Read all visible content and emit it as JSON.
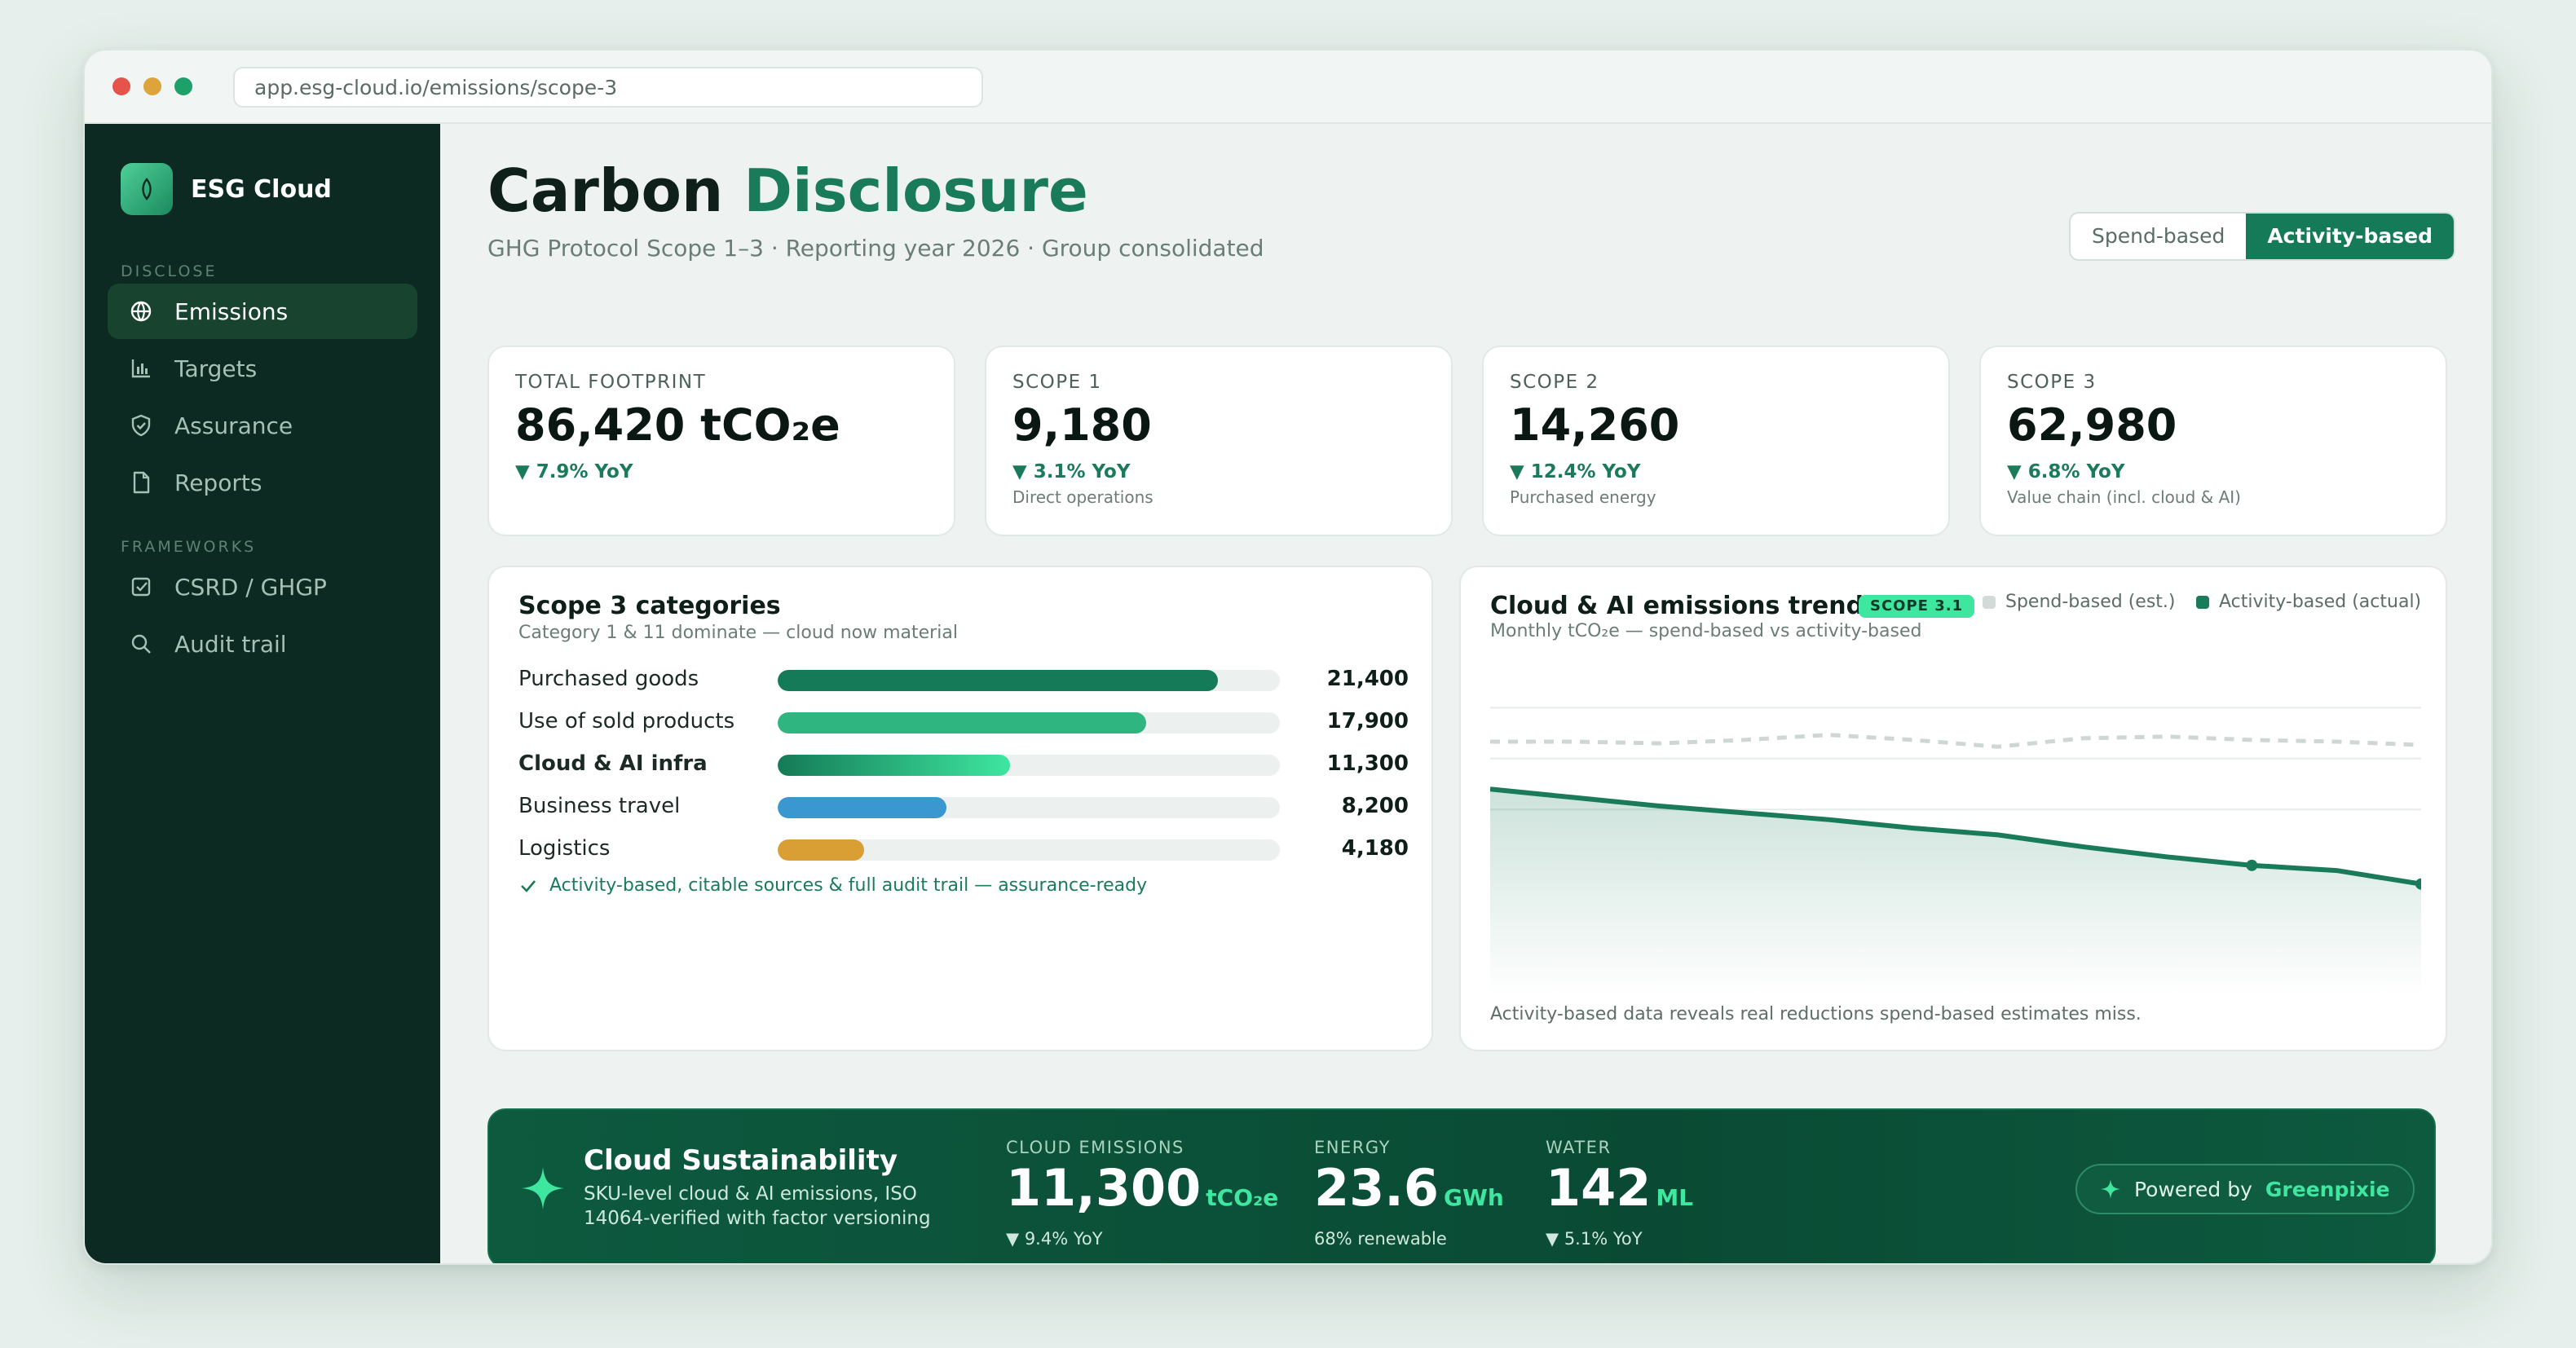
{
  "browser": {
    "url": "app.esg-cloud.io/emissions/scope-3"
  },
  "sidebar": {
    "brand": "ESG Cloud",
    "sections": [
      {
        "label": "DISCLOSE"
      },
      {
        "label": "FRAMEWORKS"
      }
    ],
    "items": [
      {
        "label": "Emissions",
        "icon": "globe-icon",
        "active": true
      },
      {
        "label": "Targets",
        "icon": "bar-chart-icon"
      },
      {
        "label": "Assurance",
        "icon": "shield-icon"
      },
      {
        "label": "Reports",
        "icon": "document-icon"
      },
      {
        "label": "CSRD / GHGP",
        "icon": "checkbox-icon"
      },
      {
        "label": "Audit trail",
        "icon": "search-icon"
      }
    ]
  },
  "header": {
    "title_part1": "Carbon",
    "title_part2": "Disclosure",
    "subtitle": "GHG Protocol Scope 1–3 · Reporting year 2026 · Group consolidated",
    "toggle": {
      "option1": "Spend-based",
      "option2": "Activity-based",
      "selected": "Activity-based"
    }
  },
  "kpis": [
    {
      "label": "TOTAL FOOTPRINT",
      "value": "86,420 tCO₂e",
      "delta": "▼ 7.9% YoY",
      "note": ""
    },
    {
      "label": "SCOPE 1",
      "value": "9,180",
      "delta": "▼ 3.1% YoY",
      "note": "Direct operations"
    },
    {
      "label": "SCOPE 2",
      "value": "14,260",
      "delta": "▼ 12.4% YoY",
      "note": "Purchased energy"
    },
    {
      "label": "SCOPE 3",
      "value": "62,980",
      "delta": "▼ 6.8% YoY",
      "note": "Value chain (incl. cloud & AI)"
    }
  ],
  "categories_panel": {
    "title": "Scope 3 categories",
    "subtitle": "Category 1 & 11 dominate — cloud now material",
    "max": 24400,
    "rows": [
      {
        "label": "Purchased goods",
        "value": 21400,
        "display": "21,400",
        "color": "#157a57"
      },
      {
        "label": "Use of sold products",
        "value": 17900,
        "display": "17,900",
        "color": "#2fb57f"
      },
      {
        "label": "Cloud & AI infra",
        "value": 11300,
        "display": "11,300",
        "color": "#3ee6a0",
        "bold": true
      },
      {
        "label": "Business travel",
        "value": 8200,
        "display": "8,200",
        "color": "#3a97cf"
      },
      {
        "label": "Logistics",
        "value": 4180,
        "display": "4,180",
        "color": "#d99f35"
      }
    ],
    "note": "Activity-based, citable sources & full audit trail — assurance-ready"
  },
  "trend_panel": {
    "title": "Cloud & AI emissions trend",
    "badge": "SCOPE 3.1",
    "subtitle": "Monthly tCO₂e — spend-based vs activity-based",
    "caption": "Activity-based data reveals real reductions spend-based estimates miss.",
    "colors": {
      "spend": "#cfd7d4",
      "activity": "#1a7b5a"
    }
  },
  "chart_data": {
    "type": "line",
    "title": "Cloud & AI emissions trend",
    "subtitle": "Monthly tCO₂e — spend-based vs activity-based",
    "xlabel": "",
    "ylabel": "",
    "ylim": [
      0,
      100
    ],
    "grid": true,
    "legend": "top-right",
    "x": [
      1,
      2,
      3,
      4,
      5,
      6,
      7,
      8,
      9,
      10,
      11,
      12
    ],
    "series": [
      {
        "name": "Spend-based (est.)",
        "style": "dashed",
        "values": [
          75,
          75,
          74.5,
          75.5,
          77,
          75.5,
          73.5,
          76,
          76.5,
          75.5,
          75,
          74
        ]
      },
      {
        "name": "Activity-based (actual)",
        "style": "solid",
        "values": [
          61,
          58.5,
          56,
          54,
          52,
          49.5,
          47.5,
          44,
          41,
          38.5,
          37,
          33
        ]
      }
    ]
  },
  "banner": {
    "title": "Cloud Sustainability",
    "description": "SKU-level cloud & AI emissions, ISO 14064-verified with factor versioning",
    "stats": [
      {
        "label": "CLOUD EMISSIONS",
        "value": "11,300",
        "unit": "tCO₂e",
        "note": "▼ 9.4% YoY"
      },
      {
        "label": "ENERGY",
        "value": "23.6",
        "unit": "GWh",
        "note": "68% renewable"
      },
      {
        "label": "WATER",
        "value": "142",
        "unit": "ML",
        "note": "▼ 5.1% YoY"
      }
    ],
    "powered_prefix": "Powered by",
    "powered_brand": "Greenpixie"
  }
}
